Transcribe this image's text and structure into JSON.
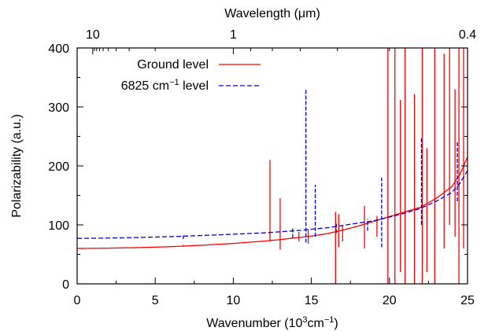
{
  "chart_data": {
    "type": "line",
    "xlabel": "Wavenumber (10",
    "xlabel_sup": "3",
    "xlabel_mid": "cm",
    "xlabel_sup2": "−1",
    "xlabel_end": ")",
    "ylabel": "Polarizability (a.u.)",
    "top_axis_label": "Wavelength (μm)",
    "xlim": [
      0,
      25
    ],
    "ylim": [
      0,
      400
    ],
    "x_ticks": [
      0,
      5,
      10,
      15,
      20,
      25
    ],
    "y_ticks": [
      0,
      100,
      200,
      300,
      400
    ],
    "x_tick_labels": [
      "0",
      "5",
      "10",
      "15",
      "20",
      "25"
    ],
    "y_tick_labels": [
      "0",
      "100",
      "200",
      "300",
      "400"
    ],
    "top_ticks": [
      {
        "label": "10",
        "wavenumber": 1
      },
      {
        "label": "1",
        "wavenumber": 10
      },
      {
        "label": "0.4",
        "wavenumber": 25
      }
    ],
    "top_minor_wavenumbers": [
      1.111,
      1.25,
      1.429,
      1.667,
      2,
      2.5,
      3.333,
      5,
      11.11,
      12.5,
      14.29,
      16.67,
      20
    ],
    "legend_position": "top-left",
    "series": [
      {
        "name": "Ground level",
        "color": "#ff0000",
        "dash": "solid",
        "background": [
          [
            0,
            60
          ],
          [
            2,
            60.5
          ],
          [
            4,
            61.5
          ],
          [
            6,
            63
          ],
          [
            8,
            65.5
          ],
          [
            10,
            68.5
          ],
          [
            12,
            72.5
          ],
          [
            13,
            75
          ],
          [
            14,
            78
          ],
          [
            15,
            81
          ],
          [
            16,
            85
          ],
          [
            17,
            91
          ],
          [
            18,
            98
          ],
          [
            19,
            106
          ],
          [
            19.5,
            110
          ],
          [
            20,
            114
          ],
          [
            21,
            122
          ],
          [
            22,
            130
          ],
          [
            23,
            145
          ],
          [
            24,
            165
          ],
          [
            24.5,
            185
          ],
          [
            25,
            215
          ]
        ],
        "spikes": [
          {
            "x": 6.8,
            "lo": 63,
            "hi": 66
          },
          {
            "x": 12.35,
            "lo": 72,
            "hi": 210
          },
          {
            "x": 13.0,
            "lo": 58,
            "hi": 145
          },
          {
            "x": 14.2,
            "lo": 72,
            "hi": 88
          },
          {
            "x": 14.8,
            "lo": 68,
            "hi": 92
          },
          {
            "x": 16.55,
            "lo": 0,
            "hi": 122
          },
          {
            "x": 16.75,
            "lo": 62,
            "hi": 118
          },
          {
            "x": 17.0,
            "lo": 72,
            "hi": 100
          },
          {
            "x": 18.4,
            "lo": 60,
            "hi": 132
          },
          {
            "x": 19.2,
            "lo": 80,
            "hi": 115
          },
          {
            "x": 19.9,
            "lo": 0,
            "hi": 400
          },
          {
            "x": 20.35,
            "lo": 0,
            "hi": 400
          },
          {
            "x": 20.7,
            "lo": 20,
            "hi": 312
          },
          {
            "x": 21.0,
            "lo": 0,
            "hi": 400
          },
          {
            "x": 21.6,
            "lo": 0,
            "hi": 322
          },
          {
            "x": 22.1,
            "lo": 0,
            "hi": 400
          },
          {
            "x": 22.4,
            "lo": 20,
            "hi": 230
          },
          {
            "x": 22.9,
            "lo": 0,
            "hi": 400
          },
          {
            "x": 23.5,
            "lo": 60,
            "hi": 390
          },
          {
            "x": 23.85,
            "lo": 100,
            "hi": 400
          },
          {
            "x": 24.2,
            "lo": 80,
            "hi": 330
          },
          {
            "x": 24.45,
            "lo": 0,
            "hi": 400
          },
          {
            "x": 24.75,
            "lo": 60,
            "hi": 400
          }
        ]
      },
      {
        "name": "6825 cm",
        "name_sup": "−1",
        "name_suffix": " level",
        "color": "#0000dd",
        "dash": "dashed",
        "background": [
          [
            0,
            77
          ],
          [
            3,
            78
          ],
          [
            6,
            80
          ],
          [
            9,
            83
          ],
          [
            12,
            86.5
          ],
          [
            14,
            90
          ],
          [
            16,
            95
          ],
          [
            18,
            103
          ],
          [
            19,
            107
          ],
          [
            20,
            113
          ],
          [
            21,
            120
          ],
          [
            22,
            128
          ],
          [
            23,
            140
          ],
          [
            24,
            155
          ],
          [
            24.5,
            170
          ],
          [
            25,
            192
          ]
        ],
        "spikes": [
          {
            "x": 6.8,
            "lo": 76,
            "hi": 82
          },
          {
            "x": 13.8,
            "lo": 78,
            "hi": 95
          },
          {
            "x": 14.65,
            "lo": 70,
            "hi": 330
          },
          {
            "x": 15.25,
            "lo": 80,
            "hi": 168
          },
          {
            "x": 16.6,
            "lo": 86,
            "hi": 105
          },
          {
            "x": 18.6,
            "lo": 90,
            "hi": 110
          },
          {
            "x": 19.5,
            "lo": 62,
            "hi": 180
          },
          {
            "x": 22.05,
            "lo": 100,
            "hi": 248
          },
          {
            "x": 24.35,
            "lo": 140,
            "hi": 240
          }
        ]
      }
    ]
  }
}
